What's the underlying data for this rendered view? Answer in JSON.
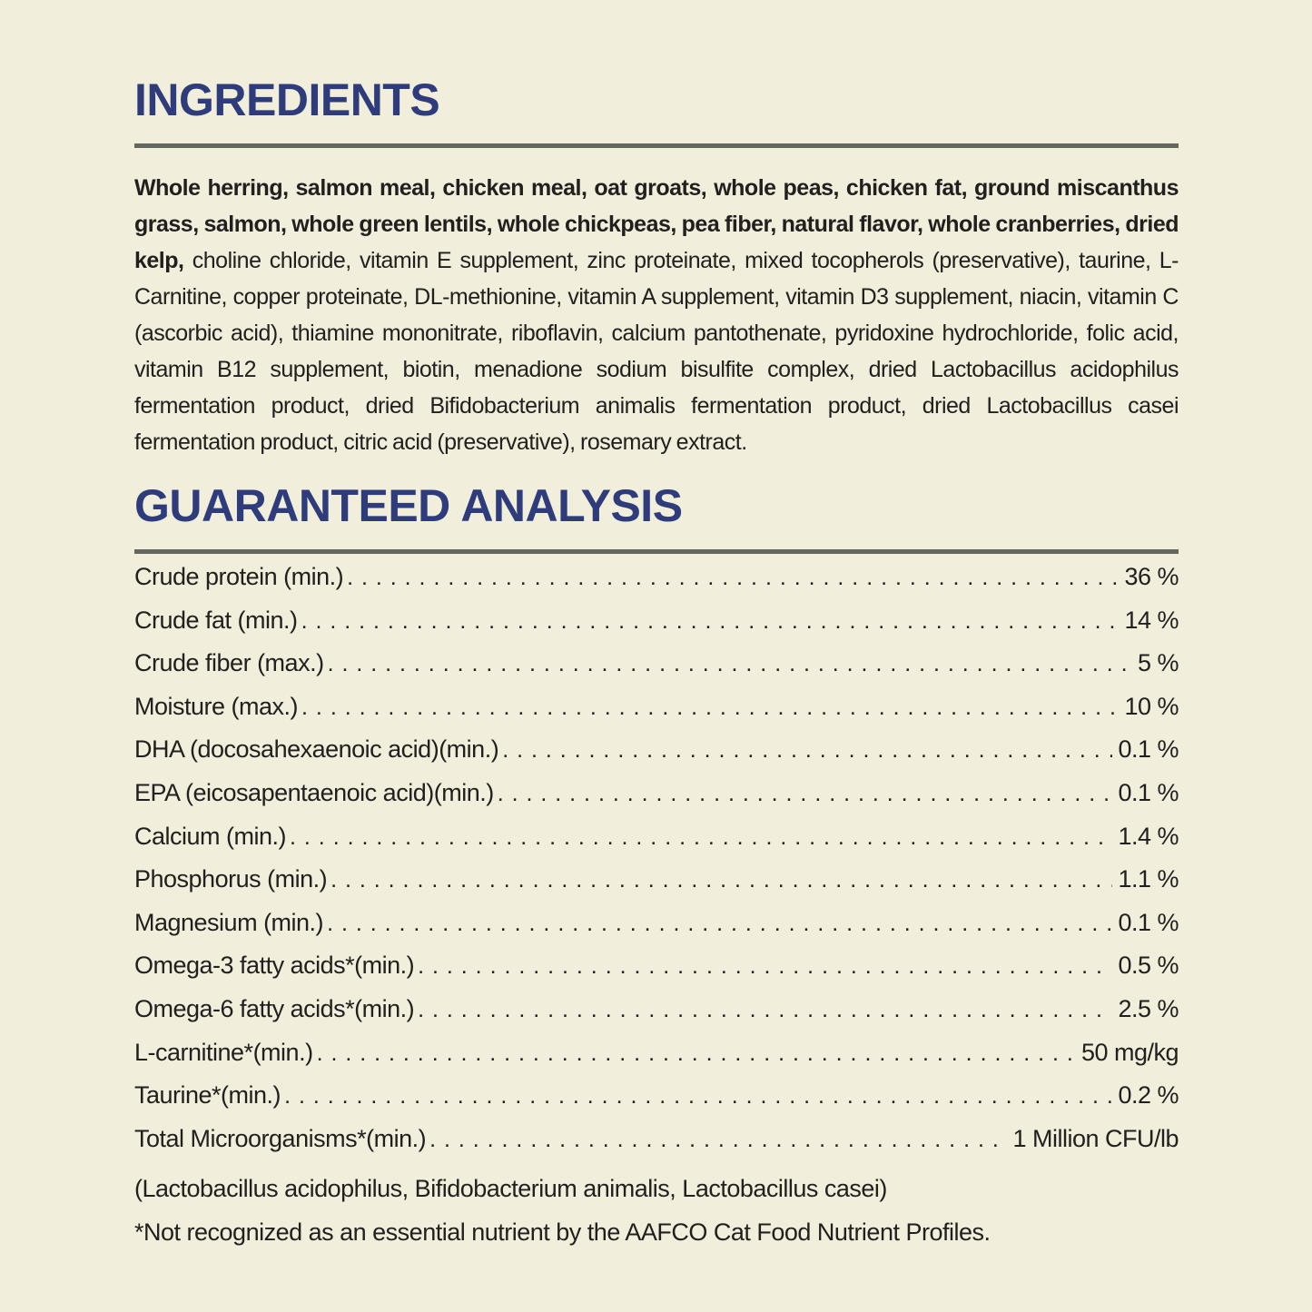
{
  "page": {
    "colors": {
      "background": "#f1eedc",
      "accent": "#2e3c7c",
      "rule": "#64675f",
      "ink": "#21201e"
    }
  },
  "ingredients": {
    "heading": "INGREDIENTS",
    "bold_text": "Whole herring, salmon meal, chicken meal, oat groats, whole peas, chicken fat, ground miscanthus grass, salmon, whole green lentils, whole chickpeas, pea fiber, natural flavor, whole cranberries, dried kelp,",
    "regular_text": " choline chloride, vitamin E supplement, zinc proteinate, mixed tocopherols (preservative), taurine, L-Carnitine, copper proteinate, DL-methionine, vitamin A supplement, vitamin D3 supplement, niacin, vitamin C (ascorbic acid), thiamine mononitrate, riboflavin, calcium pantothenate, pyridoxine hydrochloride, folic acid, vitamin B12 supplement, biotin, menadione sodium bisulfite complex, dried Lactobacillus acidophilus fermentation product, dried Bifidobacterium animalis fermentation product, dried Lactobacillus casei fermentation product, citric acid (preservative), rosemary extract."
  },
  "guaranteed_analysis": {
    "heading": "GUARANTEED ANALYSIS",
    "rows": [
      {
        "label": "Crude protein (min.)",
        "value": "36 %"
      },
      {
        "label": "Crude fat (min.)",
        "value": "14 %"
      },
      {
        "label": "Crude fiber (max.)",
        "value": "5 %"
      },
      {
        "label": "Moisture (max.)",
        "value": "10 %"
      },
      {
        "label": "DHA (docosahexaenoic acid)(min.)",
        "value": "0.1 %"
      },
      {
        "label": "EPA (eicosapentaenoic acid)(min.)",
        "value": "0.1 %"
      },
      {
        "label": "Calcium (min.)",
        "value": "1.4 %"
      },
      {
        "label": "Phosphorus (min.)",
        "value": "1.1 %"
      },
      {
        "label": "Magnesium (min.)",
        "value": "0.1 %"
      },
      {
        "label": "Omega-3 fatty acids*(min.)",
        "value": "0.5 %"
      },
      {
        "label": "Omega-6 fatty acids*(min.)",
        "value": "2.5 %"
      },
      {
        "label": "L-carnitine*(min.)",
        "value": "50 mg/kg"
      },
      {
        "label": "Taurine*(min.)",
        "value": "0.2 %"
      },
      {
        "label": "Total Microorganisms*(min.)",
        "value": "1 Million CFU/lb"
      }
    ],
    "microorganisms_detail": "(Lactobacillus acidophilus, Bifidobacterium animalis, Lactobacillus casei)",
    "footnote": "*Not recognized as an essential nutrient by the AAFCO Cat Food Nutrient Profiles."
  }
}
